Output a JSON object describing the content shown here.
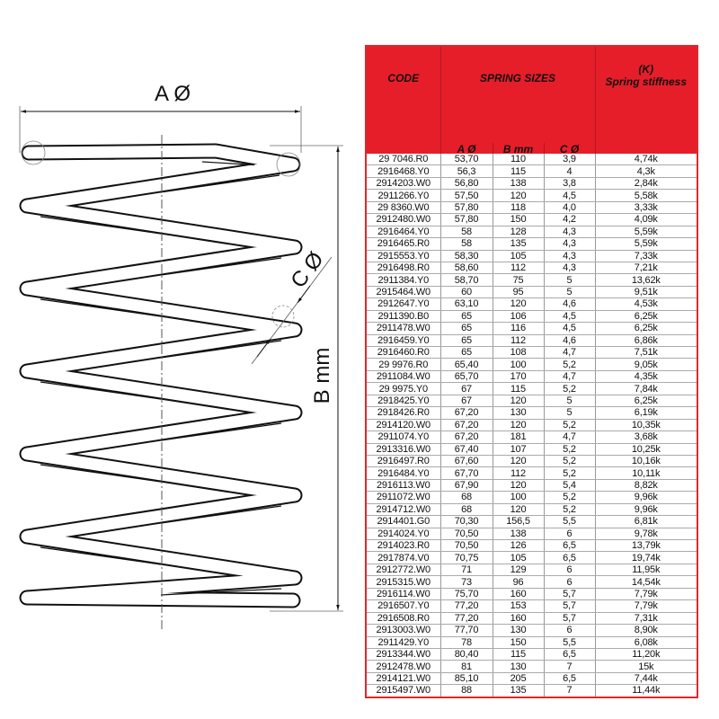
{
  "drawing": {
    "label_a": "A Ø",
    "label_b": "B mm",
    "label_c": "C Ø"
  },
  "table": {
    "header": {
      "code": "CODE",
      "sizes": "SPRING SIZES",
      "stiffness_k": "(K)",
      "stiffness": "Spring stiffness",
      "col_a": "A Ø",
      "col_b": "B mm",
      "col_c": "C Ø"
    },
    "header_color": "#e61e2a",
    "rows": [
      [
        "29 7046.R0",
        "53,70",
        "110",
        "3,9",
        "4,74k"
      ],
      [
        "2916468.Y0",
        "56,3",
        "115",
        "4",
        "4,3k"
      ],
      [
        "2914203.W0",
        "56,80",
        "138",
        "3,8",
        "2,84k"
      ],
      [
        "2911266.Y0",
        "57,50",
        "120",
        "4,5",
        "5,58k"
      ],
      [
        "29 8360.W0",
        "57,80",
        "118",
        "4,0",
        "3,33k"
      ],
      [
        "2912480.W0",
        "57,80",
        "150",
        "4,2",
        "4,09k"
      ],
      [
        "2916464.Y0",
        "58",
        "128",
        "4,3",
        "5,59k"
      ],
      [
        "2916465.R0",
        "58",
        "135",
        "4,3",
        "5,59k"
      ],
      [
        "2915553.Y0",
        "58,30",
        "105",
        "4,3",
        "7,33k"
      ],
      [
        "2916498.R0",
        "58,60",
        "112",
        "4,3",
        "7,21k"
      ],
      [
        "2911384.Y0",
        "58,70",
        "75",
        "5",
        "13,62k"
      ],
      [
        "2915464.W0",
        "60",
        "95",
        "5",
        "9,51k"
      ],
      [
        "2912647.Y0",
        "63,10",
        "120",
        "4,6",
        "4,53k"
      ],
      [
        "2911390.B0",
        "65",
        "106",
        "4,5",
        "6,25k"
      ],
      [
        "2911478.W0",
        "65",
        "116",
        "4,5",
        "6,25k"
      ],
      [
        "2916459.Y0",
        "65",
        "112",
        "4,6",
        "6,86k"
      ],
      [
        "2916460.R0",
        "65",
        "108",
        "4,7",
        "7,51k"
      ],
      [
        "29 9976.R0",
        "65,40",
        "100",
        "5,2",
        "9,05k"
      ],
      [
        "2911084.W0",
        "65,70",
        "170",
        "4,7",
        "4,35k"
      ],
      [
        "29 9975.Y0",
        "67",
        "115",
        "5,2",
        "7,84k"
      ],
      [
        "2918425.Y0",
        "67",
        "120",
        "5",
        "6,25k"
      ],
      [
        "2918426.R0",
        "67,20",
        "130",
        "5",
        "6,19k"
      ],
      [
        "2914120.W0",
        "67,20",
        "120",
        "5,2",
        "10,35k"
      ],
      [
        "2911074.Y0",
        "67,20",
        "181",
        "4,7",
        "3,68k"
      ],
      [
        "2913316.W0",
        "67,40",
        "107",
        "5,2",
        "10,25k"
      ],
      [
        "2916497.R0",
        "67,60",
        "120",
        "5,2",
        "10,16k"
      ],
      [
        "2916484.Y0",
        "67,70",
        "112",
        "5,2",
        "10,11k"
      ],
      [
        "2916113.W0",
        "67,90",
        "120",
        "5,4",
        "8,82k"
      ],
      [
        "2911072.W0",
        "68",
        "100",
        "5,2",
        "9,96k"
      ],
      [
        "2914712.W0",
        "68",
        "120",
        "5,2",
        "9,96k"
      ],
      [
        "2914401.G0",
        "70,30",
        "156,5",
        "5,5",
        "6,81k"
      ],
      [
        "2914024.Y0",
        "70,50",
        "138",
        "6",
        "9,78k"
      ],
      [
        "2914023.R0",
        "70,50",
        "126",
        "6,5",
        "13,79k"
      ],
      [
        "2917874.V0",
        "70,75",
        "105",
        "6,5",
        "19,74k"
      ],
      [
        "2912772.W0",
        "71",
        "129",
        "6",
        "11,95k"
      ],
      [
        "2915315.W0",
        "73",
        "96",
        "6",
        "14,54k"
      ],
      [
        "2916114.W0",
        "75,70",
        "160",
        "5,7",
        "7,79k"
      ],
      [
        "2916507.Y0",
        "77,20",
        "153",
        "5,7",
        "7,79k"
      ],
      [
        "2916508.R0",
        "77,20",
        "160",
        "5,7",
        "7,31k"
      ],
      [
        "2913003.W0",
        "77,70",
        "130",
        "6",
        "8,90k"
      ],
      [
        "2911429.Y0",
        "78",
        "150",
        "5,5",
        "6,08k"
      ],
      [
        "2913344.W0",
        "80,40",
        "115",
        "6,5",
        "11,20k"
      ],
      [
        "2912478.W0",
        "81",
        "130",
        "7",
        "15k"
      ],
      [
        "2914121.W0",
        "85,10",
        "205",
        "6,5",
        "7,44k"
      ],
      [
        "2915497.W0",
        "88",
        "135",
        "7",
        "11,44k"
      ]
    ]
  }
}
